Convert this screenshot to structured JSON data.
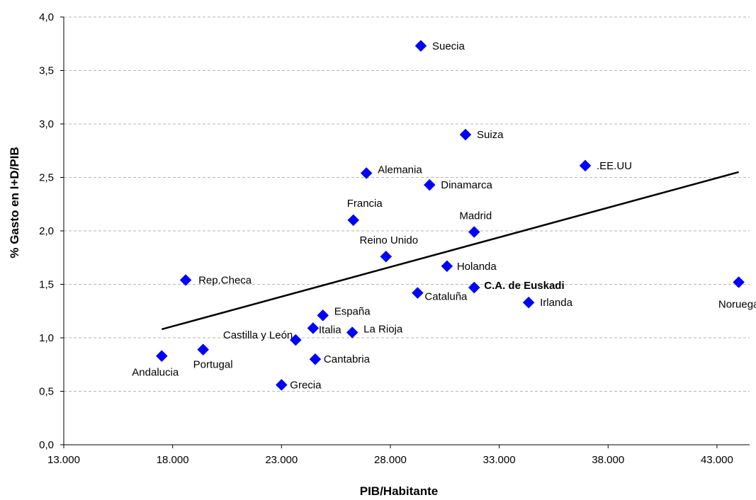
{
  "chart_data": {
    "type": "scatter",
    "title": "",
    "xlabel": "PIB/Habitante",
    "ylabel": "% Gasto en I+D/PIB",
    "xlim": [
      13000,
      44500
    ],
    "ylim": [
      0,
      4
    ],
    "x_ticks": [
      13000,
      18000,
      23000,
      28000,
      33000,
      38000,
      43000
    ],
    "x_tick_labels": [
      "13.000",
      "18.000",
      "23.000",
      "28.000",
      "33.000",
      "38.000",
      "43.000"
    ],
    "y_ticks": [
      0,
      0.5,
      1,
      1.5,
      2,
      2.5,
      3,
      3.5,
      4
    ],
    "y_tick_labels": [
      "0,0",
      "0,5",
      "1,0",
      "1,5",
      "2,0",
      "2,5",
      "3,0",
      "3,5",
      "4,0"
    ],
    "grid": "horizontal",
    "marker_color": "#0000ff",
    "points": [
      {
        "label": "Suecia",
        "x": 29400,
        "y": 3.73
      },
      {
        "label": "Suiza",
        "x": 31450,
        "y": 2.9
      },
      {
        "label": ".EE.UU",
        "x": 36950,
        "y": 2.61
      },
      {
        "label": "Alemania",
        "x": 26900,
        "y": 2.54
      },
      {
        "label": "Dinamarca",
        "x": 29800,
        "y": 2.43
      },
      {
        "label": "Francia",
        "x": 26300,
        "y": 2.1
      },
      {
        "label": "Madrid",
        "x": 31850,
        "y": 1.99
      },
      {
        "label": "Reino Unido",
        "x": 27800,
        "y": 1.76
      },
      {
        "label": "Holanda",
        "x": 30600,
        "y": 1.67
      },
      {
        "label": "Rep.Checa",
        "x": 18600,
        "y": 1.54
      },
      {
        "label": "Noruega",
        "x": 44000,
        "y": 1.52
      },
      {
        "label": "C.A. de Euskadi",
        "x": 31850,
        "y": 1.47,
        "bold": true
      },
      {
        "label": "Cataluña",
        "x": 29250,
        "y": 1.42
      },
      {
        "label": "Irlanda",
        "x": 34350,
        "y": 1.33
      },
      {
        "label": "España",
        "x": 24900,
        "y": 1.21
      },
      {
        "label": "Italia",
        "x": 24450,
        "y": 1.09
      },
      {
        "label": "La Rioja",
        "x": 26250,
        "y": 1.05
      },
      {
        "label": "Castilla y León",
        "x": 23650,
        "y": 0.98
      },
      {
        "label": "Portugal",
        "x": 19400,
        "y": 0.89
      },
      {
        "label": "Andalucia",
        "x": 17500,
        "y": 0.83
      },
      {
        "label": "Cantabria",
        "x": 24550,
        "y": 0.8
      },
      {
        "label": "Grecia",
        "x": 23000,
        "y": 0.56
      }
    ],
    "trendline": {
      "x": [
        17500,
        44000
      ],
      "y": [
        1.08,
        2.55
      ]
    }
  }
}
